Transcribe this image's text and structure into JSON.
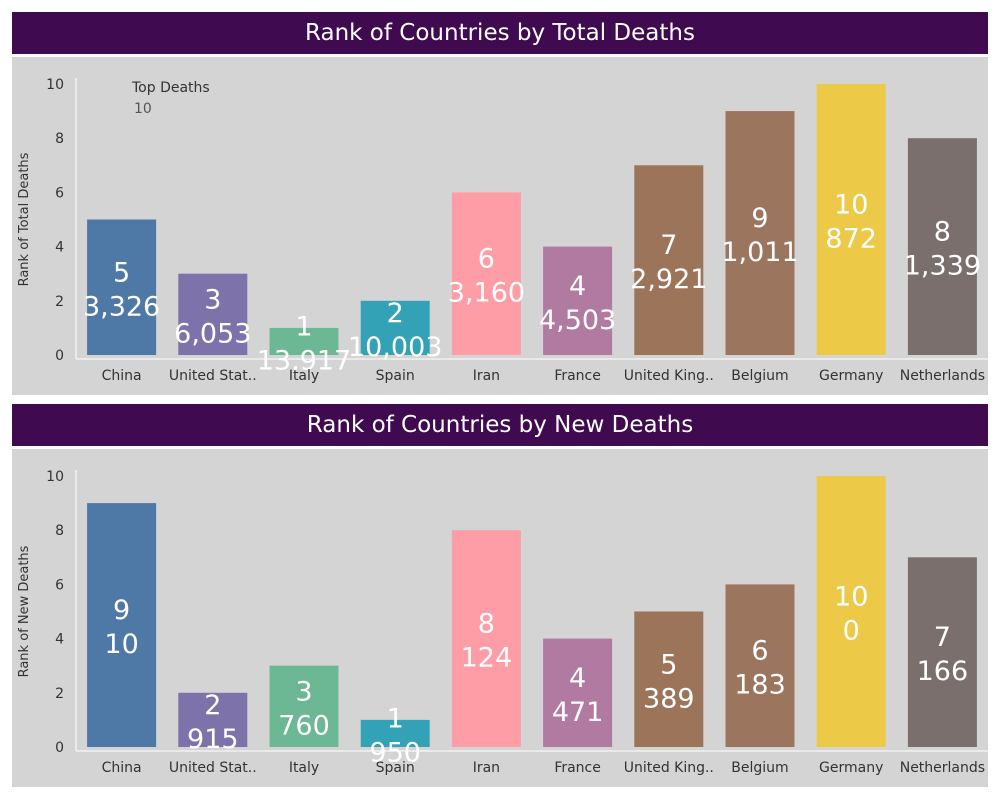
{
  "colors": {
    "header_bg": "#3f0a4f",
    "header_text": "#ffffff",
    "panel_bg": "#d4d4d4",
    "bar_label": "#ffffff",
    "China": "#4e79a7",
    "United States": "#7e72aa",
    "Italy": "#6db894",
    "Spain": "#34a2b6",
    "Iran": "#ff9da7",
    "France": "#b07aa1",
    "United Kingdom": "#9b7459",
    "Belgium": "#9c755f",
    "Germany": "#edc948",
    "Netherlands": "#7a6f6c"
  },
  "chart_data": [
    {
      "type": "bar",
      "title": "Rank of Countries by Total Deaths",
      "xlabel": "",
      "ylabel": "Rank of Total Deaths",
      "ylim": [
        0,
        10
      ],
      "yticks": [
        0,
        2,
        4,
        6,
        8,
        10
      ],
      "grid": false,
      "categories": [
        "China",
        "United Stat..",
        "Italy",
        "Spain",
        "Iran",
        "France",
        "United King..",
        "Belgium",
        "Germany",
        "Netherlands"
      ],
      "series_keys": [
        "China",
        "United States",
        "Italy",
        "Spain",
        "Iran",
        "France",
        "United Kingdom",
        "Belgium",
        "Germany",
        "Netherlands"
      ],
      "values": [
        5,
        3,
        1,
        2,
        6,
        4,
        7,
        9,
        10,
        8
      ],
      "deaths": [
        "3,326",
        "6,053",
        "13,917",
        "10,003",
        "3,160",
        "4,503",
        "2,921",
        "1,011",
        "872",
        "1,339"
      ],
      "parameter": {
        "label": "Top Deaths",
        "value": "10"
      }
    },
    {
      "type": "bar",
      "title": "Rank of Countries by New Deaths",
      "xlabel": "",
      "ylabel": "Rank of New Deaths",
      "ylim": [
        0,
        10
      ],
      "yticks": [
        0,
        2,
        4,
        6,
        8,
        10
      ],
      "grid": false,
      "categories": [
        "China",
        "United Stat..",
        "Italy",
        "Spain",
        "Iran",
        "France",
        "United King..",
        "Belgium",
        "Germany",
        "Netherlands"
      ],
      "series_keys": [
        "China",
        "United States",
        "Italy",
        "Spain",
        "Iran",
        "France",
        "United Kingdom",
        "Belgium",
        "Germany",
        "Netherlands"
      ],
      "values": [
        9,
        2,
        3,
        1,
        8,
        4,
        5,
        6,
        10,
        7
      ],
      "deaths": [
        "10",
        "915",
        "760",
        "950",
        "124",
        "471",
        "389",
        "183",
        "0",
        "166"
      ]
    }
  ]
}
